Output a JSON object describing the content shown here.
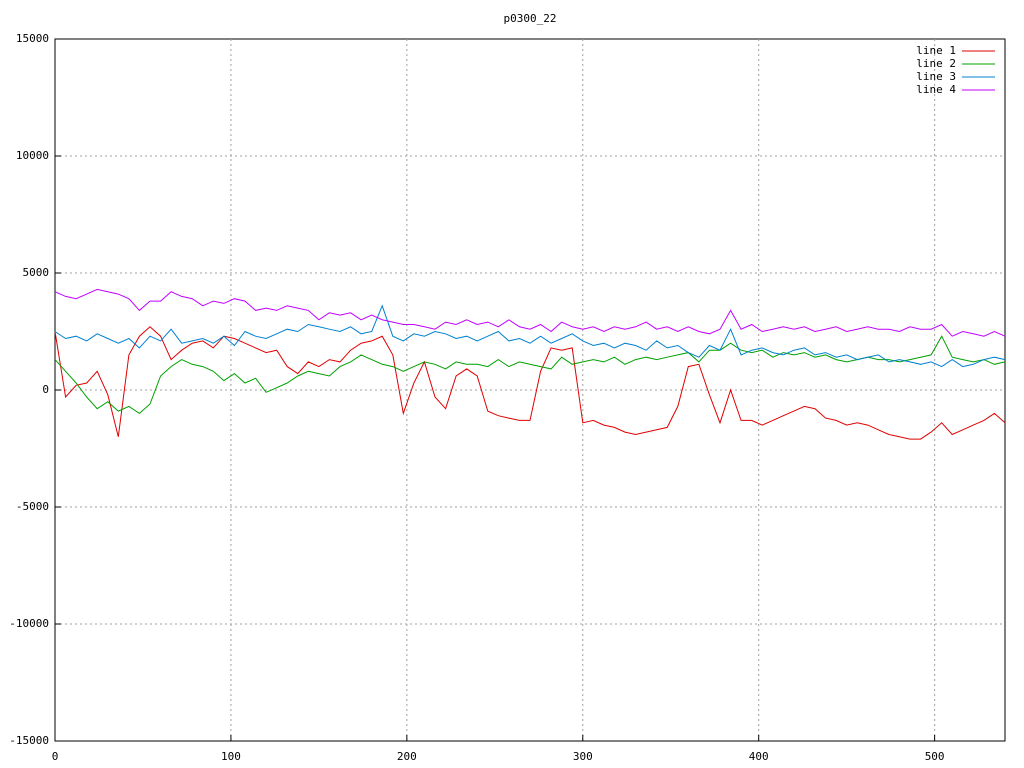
{
  "chart_data": {
    "type": "line",
    "title": "p0300_22",
    "x": [
      0,
      6,
      12,
      18,
      24,
      30,
      36,
      42,
      48,
      54,
      60,
      66,
      72,
      78,
      84,
      90,
      96,
      102,
      108,
      114,
      120,
      126,
      132,
      138,
      144,
      150,
      156,
      162,
      168,
      174,
      180,
      186,
      192,
      198,
      204,
      210,
      216,
      222,
      228,
      234,
      240,
      246,
      252,
      258,
      264,
      270,
      276,
      282,
      288,
      294,
      300,
      306,
      312,
      318,
      324,
      330,
      336,
      342,
      348,
      354,
      360,
      366,
      372,
      378,
      384,
      390,
      396,
      402,
      408,
      414,
      420,
      426,
      432,
      438,
      444,
      450,
      456,
      462,
      468,
      474,
      480,
      486,
      492,
      498,
      504,
      510,
      516,
      522,
      528,
      534,
      540
    ],
    "series": [
      {
        "name": "line 1",
        "color": "#e00000",
        "values": [
          2500,
          -300,
          200,
          300,
          800,
          -200,
          -2000,
          1500,
          2300,
          2700,
          2300,
          1300,
          1700,
          2000,
          2100,
          1800,
          2300,
          2200,
          2000,
          1800,
          1600,
          1700,
          1000,
          700,
          1200,
          1000,
          1300,
          1200,
          1700,
          2000,
          2100,
          2300,
          1500,
          -1000,
          300,
          1200,
          -300,
          -800,
          600,
          900,
          600,
          -900,
          -1100,
          -1200,
          -1300,
          -1300,
          800,
          1800,
          1700,
          1800,
          -1400,
          -1300,
          -1500,
          -1600,
          -1800,
          -1900,
          -1800,
          -1700,
          -1600,
          -700,
          1000,
          1100,
          -200,
          -1400,
          0,
          -1300,
          -1300,
          -1500,
          -1300,
          -1100,
          -900,
          -700,
          -800,
          -1200,
          -1300,
          -1500,
          -1400,
          -1500,
          -1700,
          -1900,
          -2000,
          -2100,
          -2100,
          -1800,
          -1400,
          -1900,
          -1700,
          -1500,
          -1300,
          -1000,
          -1400
        ]
      },
      {
        "name": "line 2",
        "color": "#00a000",
        "values": [
          1300,
          800,
          300,
          -300,
          -800,
          -500,
          -900,
          -700,
          -1000,
          -600,
          600,
          1000,
          1300,
          1100,
          1000,
          800,
          400,
          700,
          300,
          500,
          -100,
          100,
          300,
          600,
          800,
          700,
          600,
          1000,
          1200,
          1500,
          1300,
          1100,
          1000,
          800,
          1000,
          1200,
          1100,
          900,
          1200,
          1100,
          1100,
          1000,
          1300,
          1000,
          1200,
          1100,
          1000,
          900,
          1400,
          1100,
          1200,
          1300,
          1200,
          1400,
          1100,
          1300,
          1400,
          1300,
          1400,
          1500,
          1600,
          1200,
          1700,
          1700,
          2000,
          1700,
          1600,
          1700,
          1400,
          1600,
          1500,
          1600,
          1400,
          1500,
          1300,
          1200,
          1300,
          1400,
          1300,
          1300,
          1200,
          1300,
          1400,
          1500,
          2300,
          1400,
          1300,
          1200,
          1300,
          1100,
          1200
        ]
      },
      {
        "name": "line 3",
        "color": "#0080d0",
        "values": [
          2500,
          2200,
          2300,
          2100,
          2400,
          2200,
          2000,
          2200,
          1800,
          2300,
          2100,
          2600,
          2000,
          2100,
          2200,
          2000,
          2300,
          1900,
          2500,
          2300,
          2200,
          2400,
          2600,
          2500,
          2800,
          2700,
          2600,
          2500,
          2700,
          2400,
          2500,
          3600,
          2300,
          2100,
          2400,
          2300,
          2500,
          2400,
          2200,
          2300,
          2100,
          2300,
          2500,
          2100,
          2200,
          2000,
          2300,
          2000,
          2200,
          2400,
          2100,
          1900,
          2000,
          1800,
          2000,
          1900,
          1700,
          2100,
          1800,
          1900,
          1600,
          1400,
          1900,
          1700,
          2600,
          1500,
          1700,
          1800,
          1600,
          1500,
          1700,
          1800,
          1500,
          1600,
          1400,
          1500,
          1300,
          1400,
          1500,
          1200,
          1300,
          1200,
          1100,
          1200,
          1000,
          1300,
          1000,
          1100,
          1300,
          1400,
          1300
        ]
      },
      {
        "name": "line 4",
        "color": "#c000ff",
        "values": [
          4200,
          4000,
          3900,
          4100,
          4300,
          4200,
          4100,
          3900,
          3400,
          3800,
          3800,
          4200,
          4000,
          3900,
          3600,
          3800,
          3700,
          3900,
          3800,
          3400,
          3500,
          3400,
          3600,
          3500,
          3400,
          3000,
          3300,
          3200,
          3300,
          3000,
          3200,
          3000,
          2900,
          2800,
          2800,
          2700,
          2600,
          2900,
          2800,
          3000,
          2800,
          2900,
          2700,
          3000,
          2700,
          2600,
          2800,
          2500,
          2900,
          2700,
          2600,
          2700,
          2500,
          2700,
          2600,
          2700,
          2900,
          2600,
          2700,
          2500,
          2700,
          2500,
          2400,
          2600,
          3400,
          2600,
          2800,
          2500,
          2600,
          2700,
          2600,
          2700,
          2500,
          2600,
          2700,
          2500,
          2600,
          2700,
          2600,
          2600,
          2500,
          2700,
          2600,
          2600,
          2800,
          2300,
          2500,
          2400,
          2300,
          2500,
          2300
        ]
      }
    ],
    "xlim": [
      0,
      540
    ],
    "xticks": [
      0,
      100,
      200,
      300,
      400,
      500
    ],
    "ylim": [
      -15000,
      15000
    ],
    "yticks": [
      -15000,
      -10000,
      -5000,
      0,
      5000,
      10000,
      15000
    ],
    "grid": true,
    "legend": "top-right"
  }
}
